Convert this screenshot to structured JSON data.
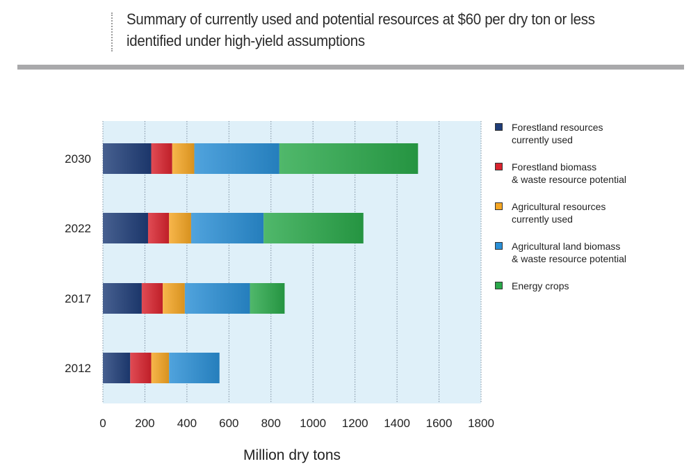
{
  "title": "Summary of currently used and potential resources at $60 per dry ton or less identified under high-yield assumptions",
  "chart_data": {
    "type": "bar",
    "orientation": "horizontal",
    "stacked": true,
    "categories": [
      "2030",
      "2022",
      "2017",
      "2012"
    ],
    "series": [
      {
        "name": "Forestland resources\ncurrently used",
        "color": "#1f3d78",
        "values": [
          230,
          215,
          185,
          130
        ]
      },
      {
        "name": "Forestland biomass\n& waste resource potential",
        "color": "#d9232e",
        "values": [
          100,
          100,
          100,
          100
        ]
      },
      {
        "name": "Agricultural resources\ncurrently used",
        "color": "#f5a623",
        "values": [
          105,
          105,
          105,
          85
        ]
      },
      {
        "name": "Agricultural land biomass\n& waste resource potential",
        "color": "#2a8fd6",
        "values": [
          405,
          345,
          310,
          240
        ]
      },
      {
        "name": "Energy crops",
        "color": "#2aa84a",
        "values": [
          660,
          475,
          165,
          0
        ]
      }
    ],
    "xlim": [
      0,
      1800
    ],
    "xticks": [
      "0",
      "200",
      "400",
      "600",
      "800",
      "1000",
      "1200",
      "1400",
      "1600",
      "1800"
    ],
    "xlabel": "Million dry tons",
    "ylabel": "",
    "grid": true,
    "legend_position": "right",
    "plot_background": "#dff0f9"
  }
}
